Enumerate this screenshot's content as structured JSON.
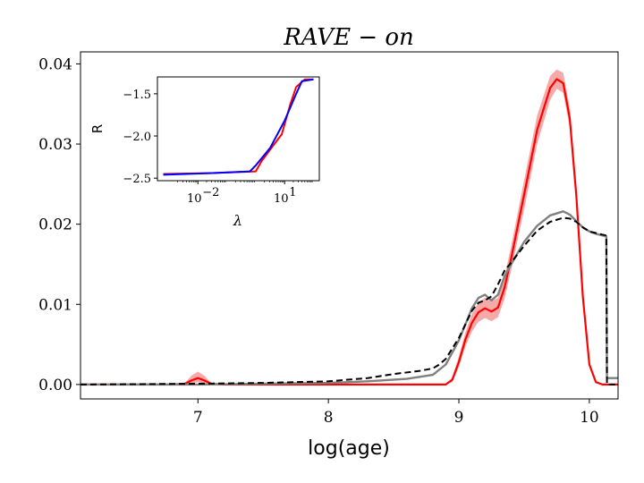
{
  "chart_data": [
    {
      "type": "line",
      "title": "RAVE − on",
      "xlabel": "log(age)",
      "ylabel": "",
      "xlim": [
        6.1,
        10.22
      ],
      "ylim": [
        -0.0018,
        0.0415
      ],
      "xticks": [
        7,
        8,
        9,
        10
      ],
      "xtick_labels": [
        "7",
        "8",
        "9",
        "10"
      ],
      "yticks": [
        0.0,
        0.01,
        0.02,
        0.03,
        0.04
      ],
      "ytick_labels": [
        "0.00",
        "0.01",
        "0.02",
        "0.03",
        "0.04"
      ],
      "grid": false,
      "series": [
        {
          "name": "red band (upper)",
          "color": "#f4a0a0",
          "x": [
            6.1,
            6.8,
            6.9,
            6.95,
            7.0,
            7.05,
            7.1,
            7.2,
            8.9,
            8.95,
            9.0,
            9.05,
            9.1,
            9.15,
            9.2,
            9.25,
            9.3,
            9.35,
            9.4,
            9.5,
            9.6,
            9.7,
            9.75,
            9.8,
            9.85,
            9.9,
            9.95,
            10.0,
            10.05,
            10.1,
            10.22
          ],
          "y": [
            0.0,
            0.0,
            0.0002,
            0.0011,
            0.0016,
            0.0011,
            0.0002,
            0.0,
            0.0,
            0.0009,
            0.0035,
            0.0065,
            0.0088,
            0.0102,
            0.0108,
            0.0104,
            0.0108,
            0.0135,
            0.0172,
            0.0255,
            0.0336,
            0.0385,
            0.0393,
            0.0389,
            0.0345,
            0.0245,
            0.0115,
            0.0028,
            0.0004,
            0.0,
            0.0
          ]
        },
        {
          "name": "red band (lower)",
          "color": "#f4a0a0",
          "x": [
            6.1,
            6.8,
            6.9,
            6.95,
            7.0,
            7.05,
            7.1,
            7.2,
            8.9,
            8.95,
            9.0,
            9.05,
            9.1,
            9.15,
            9.2,
            9.25,
            9.3,
            9.35,
            9.4,
            9.5,
            9.6,
            9.7,
            9.75,
            9.8,
            9.85,
            9.9,
            9.95,
            10.0,
            10.05,
            10.1,
            10.22
          ],
          "y": [
            0.0,
            0.0,
            0.0,
            0.0001,
            0.0003,
            0.0001,
            0.0,
            0.0,
            0.0,
            0.0003,
            0.0022,
            0.0047,
            0.0066,
            0.0078,
            0.0083,
            0.0079,
            0.0084,
            0.0107,
            0.0142,
            0.0218,
            0.03,
            0.0355,
            0.0369,
            0.0364,
            0.032,
            0.0228,
            0.0104,
            0.0022,
            0.0002,
            0.0,
            0.0
          ]
        },
        {
          "name": "red mean",
          "color": "#ff0000",
          "x": [
            6.1,
            6.8,
            6.9,
            6.95,
            7.0,
            7.05,
            7.1,
            7.2,
            8.9,
            8.95,
            9.0,
            9.05,
            9.1,
            9.15,
            9.2,
            9.25,
            9.3,
            9.35,
            9.4,
            9.5,
            9.6,
            9.7,
            9.75,
            9.8,
            9.85,
            9.9,
            9.95,
            10.0,
            10.05,
            10.1,
            10.22
          ],
          "y": [
            0.0,
            0.0,
            0.0001,
            0.0005,
            0.0008,
            0.0005,
            0.0001,
            0.0,
            0.0,
            0.0006,
            0.0028,
            0.0056,
            0.0077,
            0.009,
            0.0095,
            0.0091,
            0.0096,
            0.0121,
            0.0157,
            0.0237,
            0.0318,
            0.037,
            0.0381,
            0.0376,
            0.0332,
            0.0236,
            0.011,
            0.0025,
            0.0003,
            0.0,
            0.0
          ]
        },
        {
          "name": "gray",
          "color": "#808080",
          "x": [
            6.1,
            7.0,
            7.5,
            8.0,
            8.3,
            8.6,
            8.8,
            8.9,
            9.0,
            9.05,
            9.1,
            9.15,
            9.2,
            9.25,
            9.3,
            9.35,
            9.4,
            9.5,
            9.6,
            9.7,
            9.8,
            9.85,
            9.9,
            9.95,
            10.0,
            10.05,
            10.1,
            10.13,
            10.135,
            10.22
          ],
          "y": [
            0.0,
            0.0,
            0.0001,
            0.0002,
            0.0004,
            0.0007,
            0.0012,
            0.0025,
            0.0055,
            0.0075,
            0.0095,
            0.0108,
            0.0112,
            0.0105,
            0.0112,
            0.0135,
            0.015,
            0.0178,
            0.0198,
            0.0211,
            0.0216,
            0.0212,
            0.0204,
            0.0196,
            0.0191,
            0.0188,
            0.0186,
            0.0185,
            0.0008,
            0.0008
          ]
        },
        {
          "name": "black dashed",
          "color": "#000000",
          "x": [
            6.1,
            7.0,
            7.5,
            8.0,
            8.3,
            8.5,
            8.7,
            8.8,
            8.85,
            8.9,
            9.0,
            9.05,
            9.1,
            9.15,
            9.2,
            9.25,
            9.3,
            9.35,
            9.4,
            9.5,
            9.6,
            9.7,
            9.8,
            9.85,
            9.9,
            9.95,
            10.0,
            10.05,
            10.1,
            10.13,
            10.135,
            10.22
          ],
          "y": [
            0.0,
            0.0001,
            0.0002,
            0.0004,
            0.0008,
            0.0013,
            0.0017,
            0.002,
            0.0025,
            0.0032,
            0.0058,
            0.0075,
            0.0092,
            0.0102,
            0.0105,
            0.011,
            0.0125,
            0.0142,
            0.0152,
            0.0173,
            0.0192,
            0.0203,
            0.0208,
            0.0207,
            0.0203,
            0.0196,
            0.0191,
            0.0189,
            0.0187,
            0.0186,
            0.0,
            0.0
          ]
        }
      ]
    },
    {
      "type": "line",
      "title": "",
      "xlabel": "λ",
      "ylabel": "R",
      "xscale": "log",
      "xlim": [
        -3.4,
        2.2
      ],
      "ylim": [
        -2.53,
        -1.3
      ],
      "xticks": [
        -2,
        1
      ],
      "xtick_labels": [
        "10",
        "10"
      ],
      "xtick_exponents": [
        "−2",
        "1"
      ],
      "yticks": [
        -2.5,
        -2.0,
        -1.5
      ],
      "ytick_labels": [
        "−2.5",
        "−2.0",
        "−1.5"
      ],
      "series": [
        {
          "name": "red",
          "color": "#ff0000",
          "log_x": [
            -3.2,
            -1.5,
            0.0,
            0.2,
            0.5,
            0.9,
            1.2,
            1.4,
            1.7,
            2.0
          ],
          "y": [
            -2.45,
            -2.44,
            -2.42,
            -2.3,
            -2.16,
            -1.98,
            -1.62,
            -1.42,
            -1.33,
            -1.33
          ]
        },
        {
          "name": "blue",
          "color": "#0000ff",
          "log_x": [
            -3.2,
            -1.5,
            -0.2,
            0.0,
            0.5,
            1.0,
            1.4,
            1.6,
            2.0
          ],
          "y": [
            -2.46,
            -2.44,
            -2.42,
            -2.35,
            -2.14,
            -1.82,
            -1.5,
            -1.35,
            -1.33
          ]
        }
      ]
    }
  ]
}
